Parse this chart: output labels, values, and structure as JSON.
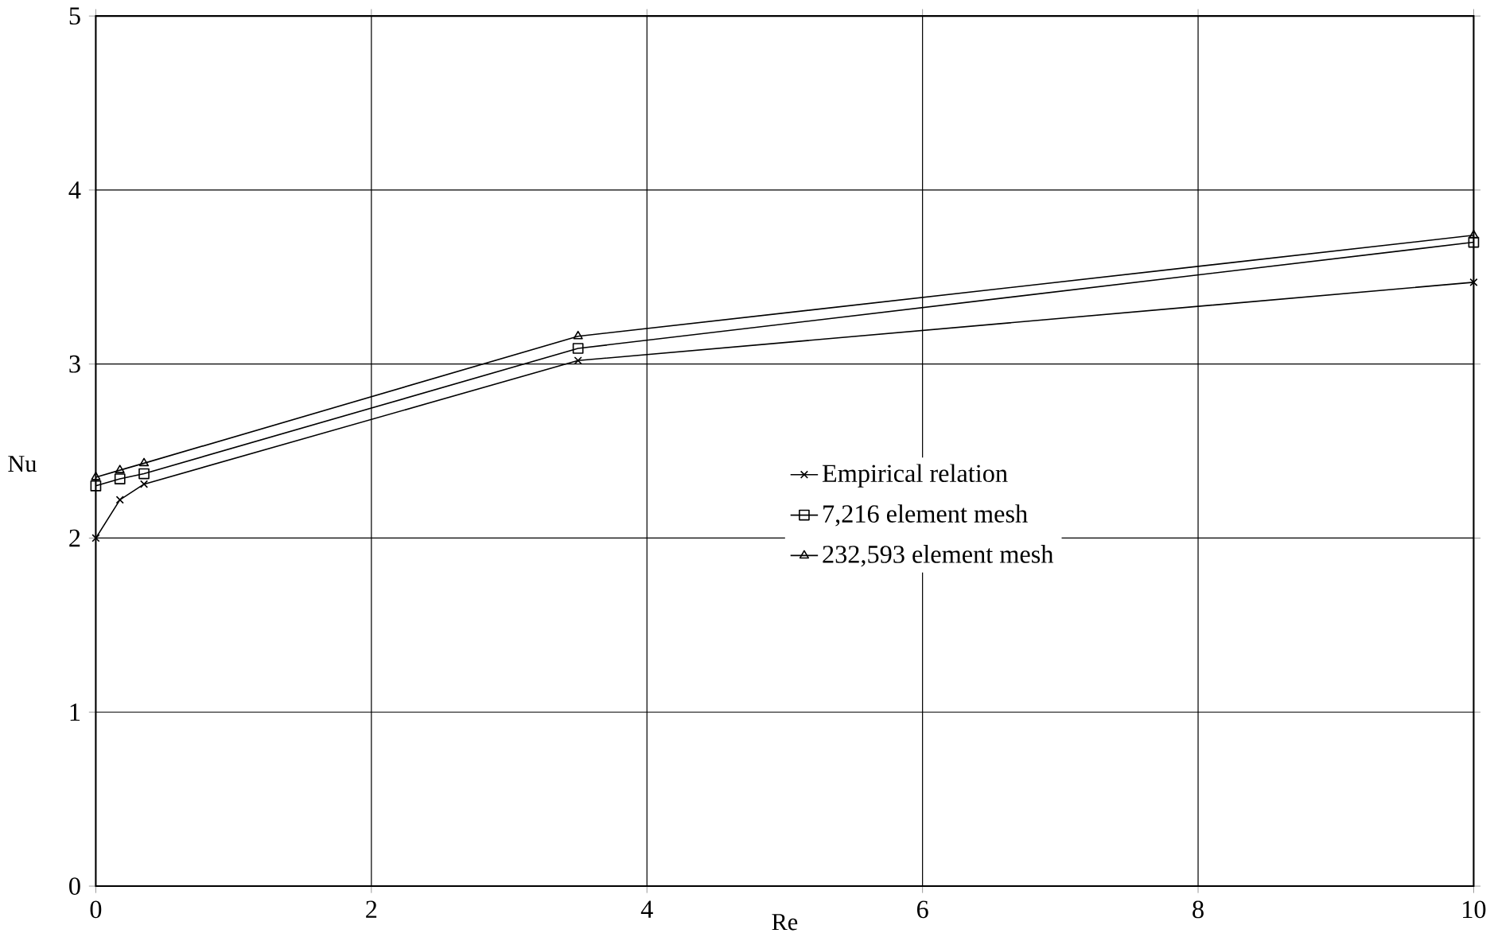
{
  "chart_data": {
    "type": "line",
    "xlabel": "Re",
    "ylabel": "Nu",
    "xlim": [
      0,
      10
    ],
    "ylim": [
      0,
      5
    ],
    "xticks": [
      0,
      2,
      4,
      6,
      8,
      10
    ],
    "yticks": [
      0,
      1,
      2,
      3,
      4,
      5
    ],
    "grid": true,
    "legend": "right",
    "line_style": "solid",
    "series": [
      {
        "name": "Empirical relation",
        "color": "#000000",
        "marker": "cross",
        "x": [
          0,
          0.175,
          0.35,
          3.5,
          10
        ],
        "values": [
          2.0,
          2.22,
          2.31,
          3.02,
          3.47
        ]
      },
      {
        "name": "7,216 element mesh",
        "color": "#000000",
        "marker": "square",
        "x": [
          0,
          0.175,
          0.35,
          3.5,
          10
        ],
        "values": [
          2.3,
          2.34,
          2.37,
          3.09,
          3.7
        ]
      },
      {
        "name": "232,593 element mesh",
        "color": "#000000",
        "marker": "triangle",
        "x": [
          0,
          0.175,
          0.35,
          3.5,
          10
        ],
        "values": [
          2.35,
          2.39,
          2.43,
          3.16,
          3.74
        ]
      }
    ]
  }
}
